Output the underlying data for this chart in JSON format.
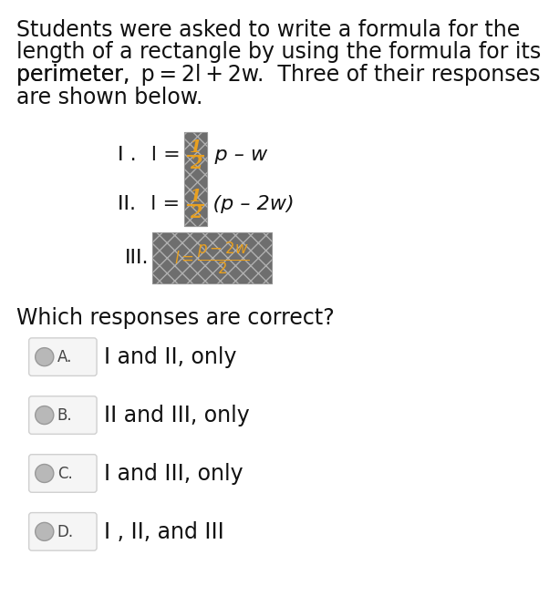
{
  "bg_color": "#ffffff",
  "text_color": "#111111",
  "question_line1": "Students were asked to write a formula for the",
  "question_line2": "length of a rectangle by using the formula for its",
  "question_line3": "perimeter, p = 2l + 2w.  Three of their responses",
  "question_line4": "are shown below.",
  "sub_question": "Which responses are correct?",
  "formula_color": "#e8a020",
  "hatch_facecolor": "#6e6e6e",
  "hatch_edgecolor": "#b0b0b0",
  "choices": [
    "A.",
    "B.",
    "C.",
    "D."
  ],
  "choice_texts": [
    "I and II, only",
    "II and III, only",
    "I and III, only",
    "I , II, and III"
  ],
  "label_fontsize": 16,
  "question_fontsize": 17,
  "choice_fontsize": 17
}
